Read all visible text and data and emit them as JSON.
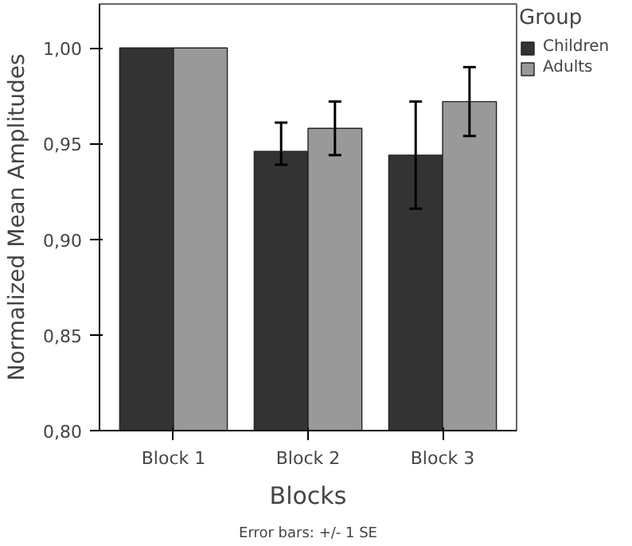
{
  "chart_data": {
    "type": "bar",
    "xlabel": "Blocks",
    "ylabel": "Normalized Mean Amplitudes",
    "legend_title": "Group",
    "categories": [
      "Block 1",
      "Block 2",
      "Block 3"
    ],
    "series": [
      {
        "name": "Children",
        "color": "#333333",
        "values": [
          1.0,
          0.946,
          0.944
        ],
        "errors": [
          null,
          [
            0.939,
            0.961
          ],
          [
            0.916,
            0.972
          ]
        ]
      },
      {
        "name": "Adults",
        "color": "#999999",
        "values": [
          1.0,
          0.958,
          0.972
        ],
        "errors": [
          null,
          [
            0.944,
            0.972
          ],
          [
            0.954,
            0.99
          ]
        ]
      }
    ],
    "ylim": [
      0.8,
      1.023
    ],
    "yticks": [
      {
        "value": 0.8,
        "label": "0,80"
      },
      {
        "value": 0.85,
        "label": "0,85"
      },
      {
        "value": 0.9,
        "label": "0,90"
      },
      {
        "value": 0.95,
        "label": "0,95"
      },
      {
        "value": 1.0,
        "label": "1,00"
      }
    ],
    "grid": false,
    "legend": "top right",
    "annotations": [
      "Error bars: +/- 1 SE"
    ]
  }
}
